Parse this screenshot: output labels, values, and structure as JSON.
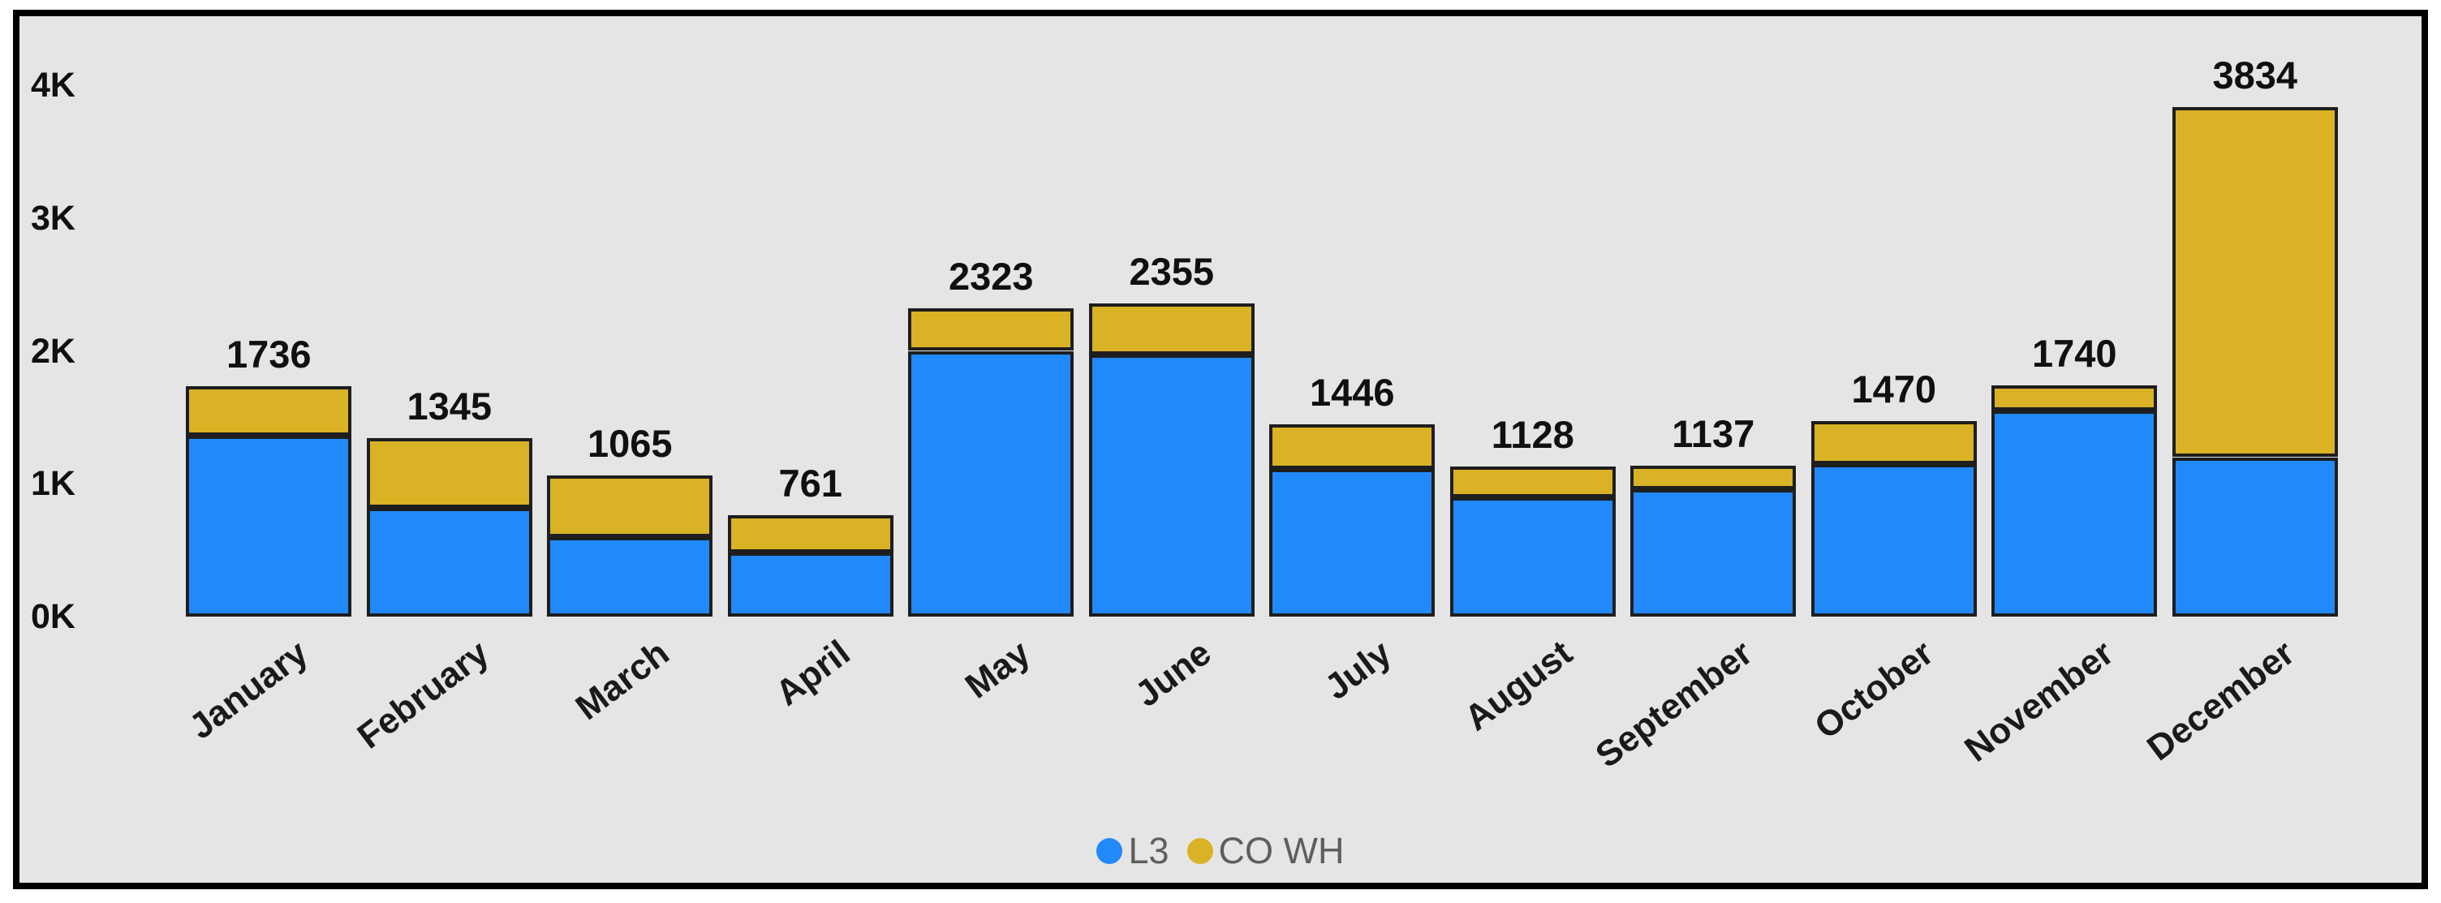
{
  "colors": {
    "background": "#E5E5E5",
    "outer_margin": "#FFFFFF",
    "frame_border": "#000000",
    "bar_outline": "#1E1E1E",
    "axis_text": "#101010",
    "data_label_text": "#101010",
    "legend_text": "#5E5E5E",
    "series_l3": "#2189FA",
    "series_co_wh": "#D9B225"
  },
  "legend": {
    "items": [
      {
        "label": "L3",
        "color": "#2189FA",
        "icon": "circle"
      },
      {
        "label": "CO WH",
        "color": "#D9B225",
        "icon": "circle"
      }
    ]
  },
  "chart_data": {
    "type": "bar",
    "stacked": true,
    "title": "",
    "xlabel": "",
    "ylabel": "",
    "categories": [
      "January",
      "February",
      "March",
      "April",
      "May",
      "June",
      "July",
      "August",
      "September",
      "October",
      "November",
      "December"
    ],
    "series": [
      {
        "name": "L3",
        "color": "#2189FA",
        "values": [
          1360,
          820,
          600,
          480,
          2000,
          1970,
          1110,
          900,
          960,
          1150,
          1550,
          1200
        ]
      },
      {
        "name": "CO WH",
        "color": "#D9B225",
        "values": [
          376,
          525,
          465,
          281,
          323,
          385,
          336,
          228,
          177,
          320,
          190,
          2634
        ]
      }
    ],
    "totals": [
      1736,
      1345,
      1065,
      761,
      2323,
      2355,
      1446,
      1128,
      1137,
      1470,
      1740,
      3834
    ],
    "y_axis": {
      "ticks": [
        {
          "label": "0K",
          "value": 0
        },
        {
          "label": "1K",
          "value": 1000
        },
        {
          "label": "2K",
          "value": 2000
        },
        {
          "label": "3K",
          "value": 3000
        },
        {
          "label": "4K",
          "value": 4000
        }
      ],
      "min": 0,
      "max": 4000
    },
    "grid": false,
    "legend_position": "bottom-center",
    "data_labels": "total-on-top"
  }
}
